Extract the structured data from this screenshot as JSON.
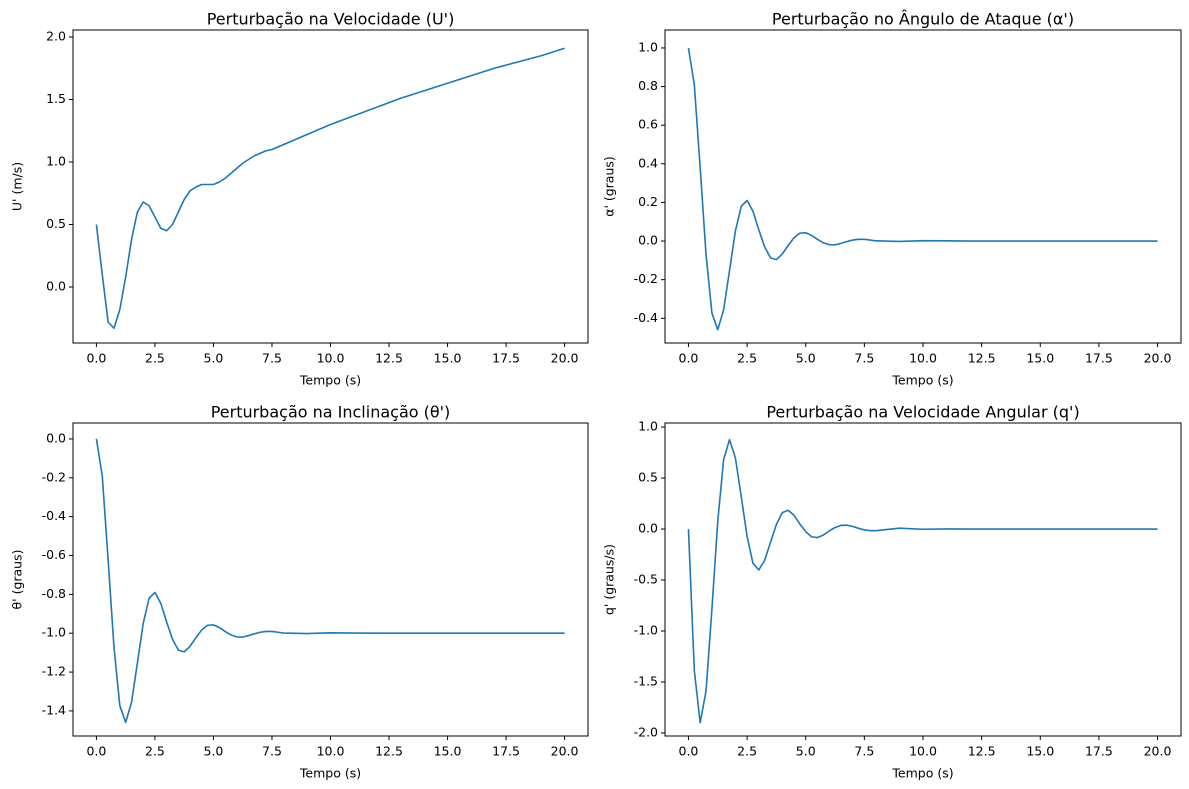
{
  "chart_data": [
    {
      "type": "line",
      "title": "Perturbação na Velocidade (U')",
      "xlabel": "Tempo (s)",
      "ylabel": "U' (m/s)",
      "color": "#1f77b4",
      "x": [
        0,
        0.25,
        0.5,
        0.75,
        1,
        1.25,
        1.5,
        1.75,
        2,
        2.25,
        2.5,
        2.75,
        3,
        3.25,
        3.5,
        3.75,
        4,
        4.25,
        4.5,
        4.75,
        5,
        5.25,
        5.5,
        5.75,
        6,
        6.25,
        6.5,
        6.75,
        7,
        7.25,
        7.5,
        7.75,
        8,
        9,
        10,
        11,
        12,
        13,
        14,
        15,
        16,
        17,
        18,
        19,
        20
      ],
      "values": [
        0.5,
        0.1,
        -0.28,
        -0.33,
        -0.18,
        0.08,
        0.38,
        0.6,
        0.68,
        0.65,
        0.56,
        0.47,
        0.45,
        0.5,
        0.6,
        0.7,
        0.77,
        0.8,
        0.82,
        0.82,
        0.82,
        0.84,
        0.87,
        0.91,
        0.95,
        0.99,
        1.02,
        1.05,
        1.07,
        1.09,
        1.1,
        1.12,
        1.14,
        1.22,
        1.3,
        1.37,
        1.44,
        1.51,
        1.57,
        1.63,
        1.69,
        1.75,
        1.8,
        1.85,
        1.91
      ],
      "xlim": [
        -1,
        21
      ],
      "ylim": [
        -0.448,
        2.056
      ],
      "xticks": [
        {
          "value": 0,
          "label": "0.0"
        },
        2.5,
        {
          "value": 5,
          "label": "5.0"
        },
        7.5,
        {
          "value": 10,
          "label": "10.0"
        },
        12.5,
        {
          "value": 15,
          "label": "15.0"
        },
        17.5,
        {
          "value": 20,
          "label": "20.0"
        }
      ],
      "yticks": [
        {
          "value": 0,
          "label": "0.0"
        },
        0.5,
        {
          "value": 1,
          "label": "1.0"
        },
        1.5,
        {
          "value": 2,
          "label": "2.0"
        }
      ]
    },
    {
      "type": "line",
      "title": "Perturbação no Ângulo de Ataque (α')",
      "xlabel": "Tempo (s)",
      "ylabel": "α' (graus)",
      "color": "#1f77b4",
      "x": [
        0,
        0.25,
        0.5,
        0.75,
        1,
        1.25,
        1.5,
        1.75,
        2,
        2.25,
        2.5,
        2.75,
        3,
        3.25,
        3.5,
        3.75,
        4,
        4.25,
        4.5,
        4.75,
        5,
        5.25,
        5.5,
        5.75,
        6,
        6.25,
        6.5,
        6.75,
        7,
        7.25,
        7.5,
        7.75,
        8,
        9,
        10,
        11,
        12,
        13,
        14,
        15,
        16,
        17,
        18,
        19,
        20
      ],
      "values": [
        1,
        0.81,
        0.379,
        -0.071,
        -0.373,
        -0.459,
        -0.356,
        -0.153,
        0.051,
        0.18,
        0.21,
        0.154,
        0.058,
        -0.031,
        -0.087,
        -0.096,
        -0.067,
        -0.023,
        0.017,
        0.041,
        0.043,
        0.029,
        0.009,
        -0.009,
        -0.019,
        -0.02,
        -0.012,
        -0.003,
        0.005,
        0.009,
        0.009,
        0.005,
        0.001,
        -0.002,
        0.002,
        0.001,
        0,
        0,
        0,
        0,
        0,
        0,
        0,
        0,
        0
      ],
      "xlim": [
        -1,
        21
      ],
      "ylim": [
        -0.528,
        1.093
      ],
      "xticks": [
        {
          "value": 0,
          "label": "0.0"
        },
        2.5,
        {
          "value": 5,
          "label": "5.0"
        },
        7.5,
        {
          "value": 10,
          "label": "10.0"
        },
        12.5,
        {
          "value": 15,
          "label": "15.0"
        },
        17.5,
        {
          "value": 20,
          "label": "20.0"
        }
      ],
      "yticks": [
        -0.4,
        -0.2,
        {
          "value": 0,
          "label": "0.0"
        },
        0.2,
        0.4,
        0.6,
        0.8,
        {
          "value": 1,
          "label": "1.0"
        }
      ]
    },
    {
      "type": "line",
      "title": "Perturbação na Inclinação (θ')",
      "xlabel": "Tempo (s)",
      "ylabel": "θ' (graus)",
      "color": "#1f77b4",
      "x": [
        0,
        0.25,
        0.5,
        0.75,
        1,
        1.25,
        1.5,
        1.75,
        2,
        2.25,
        2.5,
        2.75,
        3,
        3.25,
        3.5,
        3.75,
        4,
        4.25,
        4.5,
        4.75,
        5,
        5.25,
        5.5,
        5.75,
        6,
        6.25,
        6.5,
        6.75,
        7,
        7.25,
        7.5,
        7.75,
        8,
        9,
        10,
        11,
        12,
        13,
        14,
        15,
        16,
        17,
        18,
        19,
        20
      ],
      "values": [
        0,
        -0.19,
        -0.621,
        -1.071,
        -1.373,
        -1.459,
        -1.356,
        -1.153,
        -0.949,
        -0.82,
        -0.79,
        -0.846,
        -0.942,
        -1.031,
        -1.087,
        -1.096,
        -1.067,
        -1.023,
        -0.983,
        -0.959,
        -0.957,
        -0.971,
        -0.991,
        -1.009,
        -1.019,
        -1.02,
        -1.012,
        -1.003,
        -0.995,
        -0.991,
        -0.991,
        -0.995,
        -0.999,
        -1.002,
        -0.998,
        -0.999,
        -1,
        -1,
        -1,
        -1,
        -1,
        -1,
        -1,
        -1,
        -1
      ],
      "xlim": [
        -1,
        21
      ],
      "ylim": [
        -1.529,
        0.082
      ],
      "xticks": [
        {
          "value": 0,
          "label": "0.0"
        },
        2.5,
        {
          "value": 5,
          "label": "5.0"
        },
        7.5,
        {
          "value": 10,
          "label": "10.0"
        },
        12.5,
        {
          "value": 15,
          "label": "15.0"
        },
        17.5,
        {
          "value": 20,
          "label": "20.0"
        }
      ],
      "yticks": [
        -1.4,
        -1.2,
        {
          "value": -1,
          "label": "-1.0"
        },
        -0.8,
        -0.6,
        -0.4,
        -0.2,
        {
          "value": 0,
          "label": "0.0"
        }
      ]
    },
    {
      "type": "line",
      "title": "Perturbação na Velocidade Angular (q')",
      "xlabel": "Tempo (s)",
      "ylabel": "q' (graus/s)",
      "color": "#1f77b4",
      "x": [
        0,
        0.25,
        0.5,
        0.75,
        1,
        1.25,
        1.5,
        1.75,
        2,
        2.25,
        2.5,
        2.75,
        3,
        3.25,
        3.5,
        3.75,
        4,
        4.25,
        4.5,
        4.75,
        5,
        5.25,
        5.5,
        5.75,
        6,
        6.25,
        6.5,
        6.75,
        7,
        7.25,
        7.5,
        7.75,
        8,
        9,
        10,
        11,
        12,
        13,
        14,
        15,
        16,
        17,
        18,
        19,
        20
      ],
      "values": [
        0,
        -1.388,
        -1.9,
        -1.588,
        -0.786,
        0.079,
        0.682,
        0.876,
        0.699,
        0.32,
        -0.072,
        -0.336,
        -0.401,
        -0.306,
        -0.128,
        0.046,
        0.161,
        0.184,
        0.136,
        0.049,
        -0.026,
        -0.077,
        -0.084,
        -0.059,
        -0.019,
        0.015,
        0.036,
        0.038,
        0.026,
        0.007,
        -0.008,
        -0.016,
        -0.016,
        0.008,
        -0.002,
        0.001,
        0,
        0,
        0,
        0,
        0,
        0,
        0,
        0,
        0
      ],
      "xlim": [
        -1,
        21
      ],
      "ylim": [
        -2.03,
        1.04
      ],
      "xticks": [
        {
          "value": 0,
          "label": "0.0"
        },
        2.5,
        {
          "value": 5,
          "label": "5.0"
        },
        7.5,
        {
          "value": 10,
          "label": "10.0"
        },
        12.5,
        {
          "value": 15,
          "label": "15.0"
        },
        17.5,
        {
          "value": 20,
          "label": "20.0"
        }
      ],
      "yticks": [
        {
          "value": -2,
          "label": "-2.0"
        },
        -1.5,
        {
          "value": -1,
          "label": "-1.0"
        },
        -0.5,
        {
          "value": 0,
          "label": "0.0"
        },
        0.5,
        {
          "value": 1,
          "label": "1.0"
        }
      ]
    }
  ]
}
